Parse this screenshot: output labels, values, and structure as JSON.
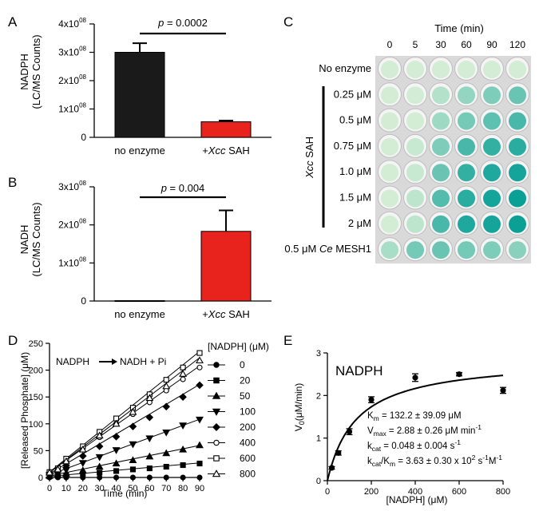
{
  "colors": {
    "bar_black": "#1a1a1a",
    "bar_red": "#e8221c",
    "plate_bg": "#d9d9d9",
    "well_rim": "#ffffff",
    "teal": "#0fa39a",
    "pale_green": "#dff2d8"
  },
  "panel_labels": {
    "a": "A",
    "b": "B",
    "c": "C",
    "d": "D",
    "e": "E"
  },
  "chart_data": [
    {
      "panel": "A",
      "type": "bar",
      "categories": [
        "no enzyme",
        "Xcc SAH"
      ],
      "category_labels": {
        "plain0": "no enzyme",
        "prefix1": "+",
        "italic1": "Xcc",
        "suffix1": " SAH"
      },
      "values": [
        300000000,
        55000000
      ],
      "errors": [
        32000000,
        4000000
      ],
      "colors": [
        "#1a1a1a",
        "#e8221c"
      ],
      "ylabel_line1": "NADPH",
      "ylabel_line2": "(LC/MS Counts)",
      "ylim": [
        0,
        400000000
      ],
      "yticks": [
        {
          "base": "0",
          "exp": ""
        },
        {
          "base": "1x10",
          "exp": "08"
        },
        {
          "base": "2x10",
          "exp": "08"
        },
        {
          "base": "3x10",
          "exp": "08"
        },
        {
          "base": "4x10",
          "exp": "08"
        }
      ],
      "annotation": {
        "p": "p",
        "rest": " = 0.0002"
      }
    },
    {
      "panel": "B",
      "type": "bar",
      "categories": [
        "no enzyme",
        "Xcc SAH"
      ],
      "category_labels": {
        "plain0": "no enzyme",
        "prefix1": "+",
        "italic1": "Xcc",
        "suffix1": " SAH"
      },
      "values": [
        1000000,
        183000000
      ],
      "errors": [
        0,
        55000000
      ],
      "colors": [
        "#1a1a1a",
        "#e8221c"
      ],
      "ylabel_line1": "NADH",
      "ylabel_line2": "(LC/MS Counts)",
      "ylim": [
        0,
        300000000
      ],
      "yticks": [
        {
          "base": "0",
          "exp": ""
        },
        {
          "base": "1x10",
          "exp": "08"
        },
        {
          "base": "2x10",
          "exp": "08"
        },
        {
          "base": "3x10",
          "exp": "08"
        }
      ],
      "annotation": {
        "p": "p",
        "rest": " = 0.004"
      }
    },
    {
      "panel": "C",
      "type": "heatmap",
      "title": "Time (min)",
      "columns": [
        "0",
        "5",
        "30",
        "60",
        "90",
        "120"
      ],
      "rows": [
        "No enzyme",
        "0.25 μM",
        "0.5 μM",
        "0.75 μM",
        "1.0 μM",
        "1.5 μM",
        "2 μM",
        "0.5 μM Ce MESH1"
      ],
      "group_label": {
        "italic": "Xcc",
        "rest": " SAH"
      },
      "last_row": {
        "prefix": "0.5 μM ",
        "italic": "Ce",
        "rest": " MESH1"
      },
      "color_levels": [
        [
          0.05,
          0.05,
          0.05,
          0.05,
          0.05,
          0.05
        ],
        [
          0.05,
          0.05,
          0.2,
          0.35,
          0.45,
          0.55
        ],
        [
          0.05,
          0.05,
          0.3,
          0.5,
          0.6,
          0.7
        ],
        [
          0.05,
          0.1,
          0.45,
          0.7,
          0.8,
          0.85
        ],
        [
          0.05,
          0.1,
          0.55,
          0.8,
          0.9,
          0.95
        ],
        [
          0.05,
          0.15,
          0.65,
          0.85,
          0.95,
          1.0
        ],
        [
          0.05,
          0.15,
          0.7,
          0.9,
          0.95,
          1.0
        ],
        [
          0.25,
          0.5,
          0.55,
          0.5,
          0.45,
          0.4
        ]
      ]
    },
    {
      "panel": "D",
      "type": "scatter",
      "xlabel": "Time (min)",
      "ylabel": "[Released Phosphate] (μM)",
      "xlim": [
        0,
        90
      ],
      "ylim": [
        0,
        250
      ],
      "xticks": [
        0,
        10,
        20,
        30,
        40,
        50,
        60,
        70,
        80,
        90
      ],
      "yticks": [
        0,
        50,
        100,
        150,
        200,
        250
      ],
      "reaction": {
        "left": "NADPH",
        "right": "NADH + Pi"
      },
      "legend_title": "[NADPH] (μM)",
      "x": [
        0,
        5,
        10,
        20,
        30,
        40,
        50,
        60,
        70,
        80,
        90
      ],
      "series": [
        {
          "name": "0",
          "marker": "circle-filled",
          "slope": 0.0,
          "values": [
            0,
            0,
            0,
            0,
            0,
            0,
            0,
            0,
            0,
            0,
            0
          ]
        },
        {
          "name": "20",
          "marker": "square-filled",
          "slope": 0.28,
          "values": [
            2,
            3,
            4,
            7,
            9,
            12,
            15,
            17,
            20,
            23,
            26
          ]
        },
        {
          "name": "50",
          "marker": "triangle-up-filled",
          "slope": 0.63,
          "values": [
            3,
            5,
            7,
            13,
            20,
            26,
            32,
            39,
            45,
            52,
            60
          ]
        },
        {
          "name": "100",
          "marker": "triangle-down-filled",
          "slope": 1.15,
          "values": [
            5,
            8,
            14,
            27,
            38,
            51,
            62,
            73,
            84,
            97,
            108
          ]
        },
        {
          "name": "200",
          "marker": "diamond-filled",
          "slope": 1.85,
          "values": [
            7,
            12,
            22,
            40,
            58,
            76,
            95,
            112,
            132,
            150,
            172
          ]
        },
        {
          "name": "400",
          "marker": "circle-open",
          "slope": 2.2,
          "values": [
            10,
            16,
            30,
            55,
            75,
            100,
            118,
            140,
            162,
            183,
            205
          ]
        },
        {
          "name": "600",
          "marker": "square-open",
          "slope": 2.5,
          "values": [
            10,
            17,
            35,
            58,
            85,
            110,
            130,
            155,
            182,
            205,
            232
          ]
        },
        {
          "name": "800",
          "marker": "triangle-up-open",
          "slope": 2.38,
          "values": [
            9,
            15,
            30,
            52,
            78,
            100,
            122,
            148,
            170,
            193,
            218
          ]
        }
      ]
    },
    {
      "panel": "E",
      "type": "scatter",
      "title": "NADPH",
      "xlabel": "[NADPH] (μM)",
      "ylabel": {
        "v": "V",
        "sub": "0",
        "rest": "(μM/min)"
      },
      "xlim": [
        0,
        800
      ],
      "ylim": [
        0,
        3
      ],
      "xticks": [
        0,
        200,
        400,
        600,
        800
      ],
      "yticks": [
        0,
        1,
        2,
        3
      ],
      "x": [
        20,
        50,
        100,
        200,
        400,
        600,
        800
      ],
      "values": [
        0.3,
        0.65,
        1.15,
        1.9,
        2.42,
        2.5,
        2.12
      ],
      "errors": [
        0.03,
        0.05,
        0.07,
        0.07,
        0.09,
        0.04,
        0.07
      ],
      "fit": {
        "model": "Michaelis-Menten",
        "Km": 132.2,
        "Vmax": 2.88
      },
      "params": [
        {
          "main": "K",
          "sub": "m",
          "rest": " = 132.2 ± 39.09 μM",
          "sup": ""
        },
        {
          "main": "V",
          "sub": "max",
          "rest": " = 2.88 ± 0.26 μM min",
          "sup": "-1"
        },
        {
          "main": "k",
          "sub": "cat",
          "rest": " = 0.048 ± 0.004 s",
          "sup": "-1"
        },
        {
          "main": "k",
          "sub": "cat",
          "rest": "/K",
          "sub2": "m",
          "rest2": " = 3.63 ± 0.30 x 10",
          "sup": "2",
          "rest3": " s",
          "sup2": "-1",
          "rest4": "M",
          "sup3": "-1"
        }
      ]
    }
  ]
}
